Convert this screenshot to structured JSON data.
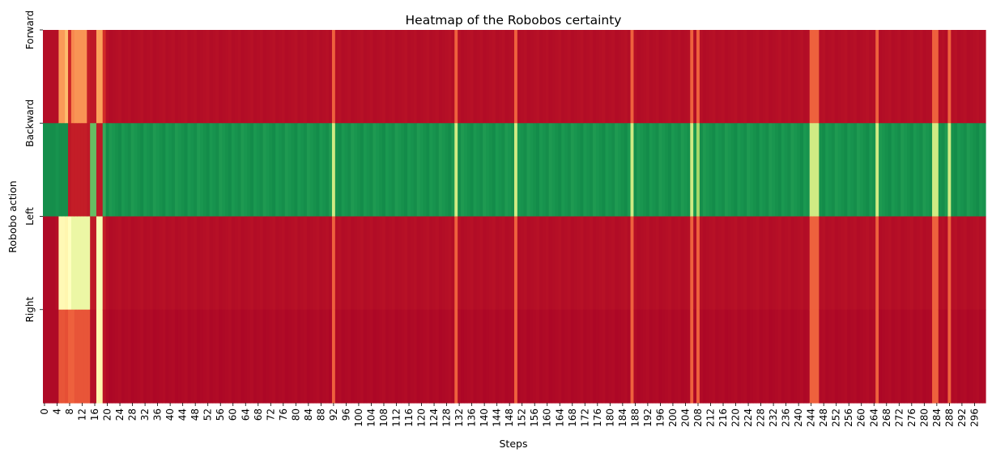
{
  "chart_data": {
    "type": "heatmap",
    "title": "Heatmap of the Robobos certainty",
    "xlabel": "Steps",
    "ylabel": "Robobo action",
    "rows": [
      "Forward",
      "Backward",
      "Left",
      "Right"
    ],
    "x_range": [
      0,
      299
    ],
    "x_tick_labels": [
      "0",
      "4",
      "8",
      "12",
      "16",
      "20",
      "24",
      "28",
      "32",
      "36",
      "40",
      "44",
      "48",
      "52",
      "56",
      "60",
      "64",
      "68",
      "72",
      "76",
      "80",
      "84",
      "88",
      "92",
      "96",
      "100",
      "104",
      "108",
      "112",
      "116",
      "120",
      "124",
      "128",
      "132",
      "136",
      "140",
      "144",
      "148",
      "152",
      "156",
      "160",
      "164",
      "168",
      "172",
      "176",
      "180",
      "184",
      "188",
      "192",
      "196",
      "200",
      "204",
      "208",
      "212",
      "216",
      "220",
      "224",
      "228",
      "232",
      "236",
      "240",
      "244",
      "248",
      "252",
      "256",
      "260",
      "264",
      "268",
      "272",
      "276",
      "280",
      "284",
      "288",
      "292",
      "296"
    ],
    "colormap": "RdYlGn",
    "value_range": [
      0,
      1
    ],
    "colorbar": false,
    "grid": false,
    "baseline_values": {
      "Forward": 0.03,
      "Backward": 0.91,
      "Left": 0.03,
      "Right": 0.02
    },
    "overrides": [
      {
        "steps": [
          0,
          3
        ],
        "values": [
          0.03,
          0.92,
          0.02,
          0.02
        ]
      },
      {
        "steps": [
          4,
          4
        ],
        "values": [
          0.03,
          0.91,
          0.03,
          0.02
        ]
      },
      {
        "steps": [
          5,
          6
        ],
        "values": [
          0.27,
          0.92,
          0.48,
          0.16
        ]
      },
      {
        "steps": [
          7,
          7
        ],
        "values": [
          0.33,
          0.92,
          0.47,
          0.15
        ]
      },
      {
        "steps": [
          8,
          8
        ],
        "values": [
          0.08,
          0.05,
          0.5,
          0.18
        ]
      },
      {
        "steps": [
          9,
          9
        ],
        "values": [
          0.24,
          0.06,
          0.55,
          0.18
        ]
      },
      {
        "steps": [
          10,
          13
        ],
        "values": [
          0.26,
          0.06,
          0.55,
          0.16
        ]
      },
      {
        "steps": [
          14,
          14
        ],
        "values": [
          0.06,
          0.05,
          0.55,
          0.16
        ]
      },
      {
        "steps": [
          15,
          16
        ],
        "values": [
          0.05,
          0.8,
          0.05,
          0.03
        ]
      },
      {
        "steps": [
          17,
          18
        ],
        "values": [
          0.28,
          0.05,
          0.52,
          0.47
        ]
      },
      {
        "steps": [
          19,
          19
        ],
        "values": [
          0.09,
          0.86,
          0.06,
          0.04
        ]
      },
      {
        "steps": [
          92,
          92
        ],
        "values": [
          0.18,
          0.62,
          0.18,
          0.18
        ]
      },
      {
        "steps": [
          131,
          131
        ],
        "values": [
          0.18,
          0.62,
          0.18,
          0.18
        ]
      },
      {
        "steps": [
          150,
          150
        ],
        "values": [
          0.18,
          0.62,
          0.18,
          0.18
        ]
      },
      {
        "steps": [
          187,
          187
        ],
        "values": [
          0.18,
          0.62,
          0.18,
          0.18
        ]
      },
      {
        "steps": [
          206,
          206
        ],
        "values": [
          0.18,
          0.62,
          0.18,
          0.18
        ]
      },
      {
        "steps": [
          208,
          208
        ],
        "values": [
          0.18,
          0.7,
          0.18,
          0.18
        ]
      },
      {
        "steps": [
          244,
          246
        ],
        "values": [
          0.18,
          0.62,
          0.18,
          0.18
        ]
      },
      {
        "steps": [
          265,
          265
        ],
        "values": [
          0.18,
          0.62,
          0.18,
          0.18
        ]
      },
      {
        "steps": [
          283,
          284
        ],
        "values": [
          0.18,
          0.62,
          0.18,
          0.18
        ]
      },
      {
        "steps": [
          288,
          288
        ],
        "values": [
          0.18,
          0.62,
          0.18,
          0.18
        ]
      }
    ]
  }
}
